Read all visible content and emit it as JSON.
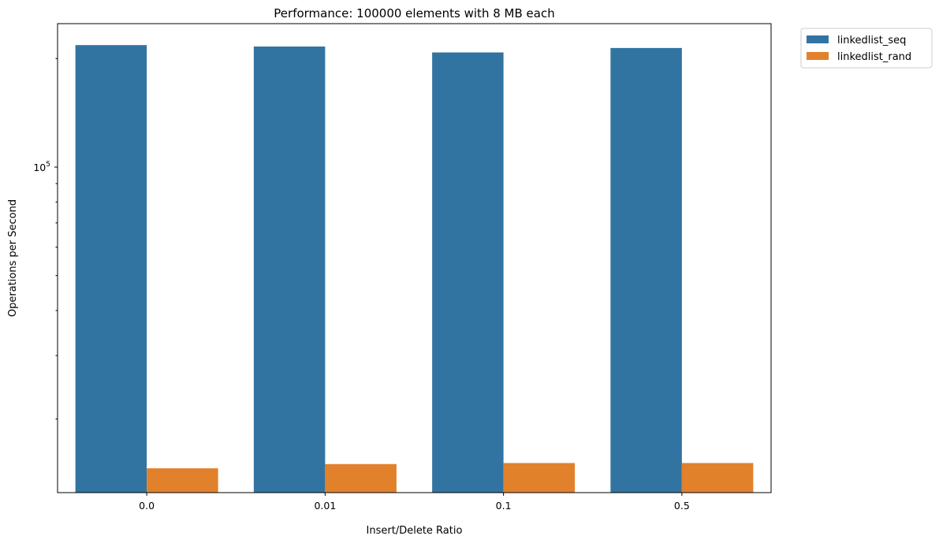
{
  "chart_data": {
    "type": "bar",
    "title": "Performance: 100000 elements with 8 MB each",
    "xlabel": "Insert/Delete Ratio",
    "ylabel": "Operations per Second",
    "yscale": "log",
    "ylim": [
      12500,
      250000
    ],
    "y_tick_labels": [
      {
        "value": 100000,
        "base": "10",
        "exponent": "5"
      }
    ],
    "categories": [
      "0.0",
      "0.01",
      "0.1",
      "0.5"
    ],
    "series": [
      {
        "name": "linkedlist_seq",
        "color": "#3274a1",
        "values": [
          218000,
          216000,
          208000,
          214000
        ]
      },
      {
        "name": "linkedlist_rand",
        "color": "#e1812c",
        "values": [
          14600,
          15000,
          15100,
          15100
        ]
      }
    ],
    "legend": {
      "placement": "outside-top-right",
      "entries": [
        "linkedlist_seq",
        "linkedlist_rand"
      ]
    },
    "grid": false
  }
}
